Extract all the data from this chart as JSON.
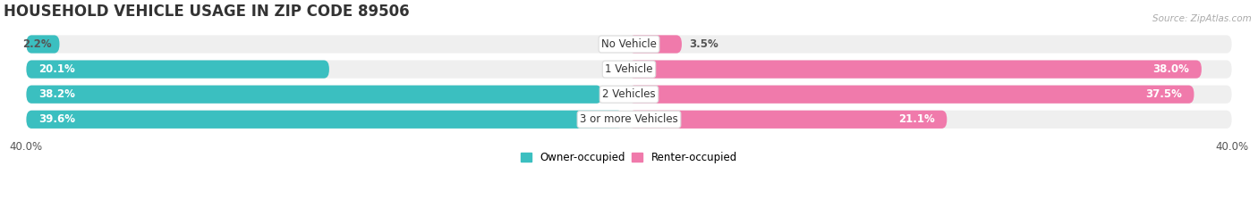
{
  "title": "HOUSEHOLD VEHICLE USAGE IN ZIP CODE 89506",
  "source": "Source: ZipAtlas.com",
  "categories": [
    "No Vehicle",
    "1 Vehicle",
    "2 Vehicles",
    "3 or more Vehicles"
  ],
  "owner_values": [
    2.2,
    20.1,
    38.2,
    39.6
  ],
  "renter_values": [
    3.5,
    38.0,
    37.5,
    21.1
  ],
  "max_val": 40.0,
  "owner_color": "#3bbfc0",
  "renter_color": "#f07aab",
  "bar_bg_color": "#e8e8e8",
  "fig_bg_color": "#ffffff",
  "row_bg_color": "#efefef",
  "owner_label": "Owner-occupied",
  "renter_label": "Renter-occupied",
  "title_fontsize": 12,
  "label_fontsize": 8.5,
  "cat_fontsize": 8.5,
  "axis_tick_fontsize": 8.5,
  "bar_height": 0.72,
  "figsize": [
    14.06,
    2.33
  ],
  "dpi": 100,
  "x_axis_label_left": "40.0%",
  "x_axis_label_right": "40.0%"
}
